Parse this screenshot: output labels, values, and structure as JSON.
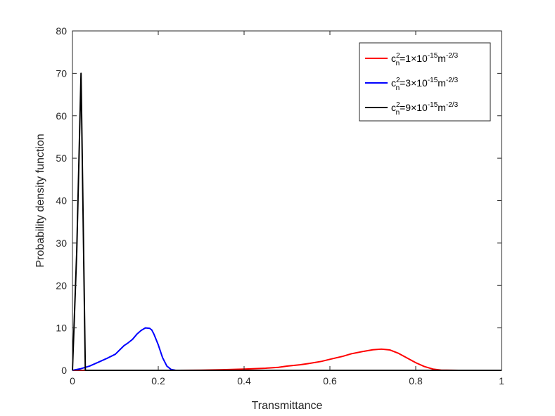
{
  "chart_data": {
    "type": "line",
    "title": "",
    "xlabel": "Transmittance",
    "ylabel": "Probability density function",
    "xlim": [
      0,
      1
    ],
    "ylim": [
      0,
      80
    ],
    "xticks": [
      0,
      0.2,
      0.4,
      0.6,
      0.8,
      1
    ],
    "xtick_labels": [
      "0",
      "0.2",
      "0.4",
      "0.6",
      "0.8",
      "1"
    ],
    "yticks": [
      0,
      10,
      20,
      30,
      40,
      50,
      60,
      70,
      80
    ],
    "ytick_labels": [
      "0",
      "10",
      "20",
      "30",
      "40",
      "50",
      "60",
      "70",
      "80"
    ],
    "grid": false,
    "legend_position": "top-right",
    "series": [
      {
        "name_parts": {
          "base": "c",
          "sup": "2",
          "sub": "n",
          "eq": "=1×10",
          "exp": "-15",
          "unit": "m",
          "unit_exp": "-2/3"
        },
        "color": "#ff0000",
        "x": [
          0,
          0.25,
          0.3,
          0.35,
          0.4,
          0.45,
          0.48,
          0.5,
          0.53,
          0.55,
          0.58,
          0.6,
          0.63,
          0.65,
          0.68,
          0.7,
          0.72,
          0.74,
          0.76,
          0.78,
          0.8,
          0.82,
          0.84,
          0.86,
          0.9,
          1
        ],
        "y": [
          0,
          0,
          0.05,
          0.15,
          0.3,
          0.5,
          0.7,
          1.0,
          1.3,
          1.6,
          2.1,
          2.6,
          3.3,
          3.9,
          4.5,
          4.85,
          5.0,
          4.8,
          4.0,
          2.9,
          1.8,
          0.9,
          0.3,
          0.05,
          0,
          0
        ]
      },
      {
        "name_parts": {
          "base": "c",
          "sup": "2",
          "sub": "n",
          "eq": "=3×10",
          "exp": "-15",
          "unit": "m",
          "unit_exp": "-2/3"
        },
        "color": "#0000ff",
        "x": [
          0,
          0.02,
          0.04,
          0.06,
          0.08,
          0.1,
          0.11,
          0.12,
          0.13,
          0.14,
          0.15,
          0.16,
          0.17,
          0.18,
          0.185,
          0.19,
          0.2,
          0.21,
          0.22,
          0.23,
          0.24,
          0.25,
          1
        ],
        "y": [
          0,
          0.4,
          1.0,
          1.9,
          2.8,
          3.8,
          4.8,
          5.8,
          6.5,
          7.3,
          8.5,
          9.4,
          10.0,
          9.9,
          9.5,
          8.5,
          6.0,
          3.0,
          1.0,
          0.2,
          0.03,
          0,
          0
        ]
      },
      {
        "name_parts": {
          "base": "c",
          "sup": "2",
          "sub": "n",
          "eq": "=9×10",
          "exp": "-15",
          "unit": "m",
          "unit_exp": "-2/3"
        },
        "color": "#000000",
        "x": [
          0,
          0.01,
          0.02,
          0.03,
          1
        ],
        "y": [
          0,
          28,
          70,
          0,
          0
        ]
      }
    ]
  }
}
